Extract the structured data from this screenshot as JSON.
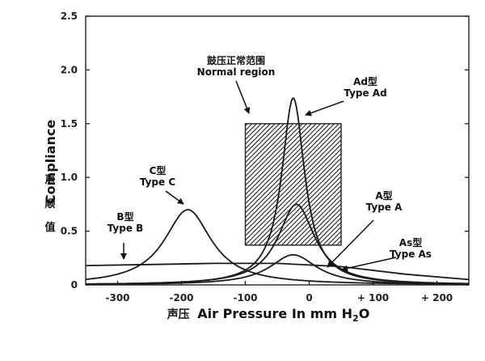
{
  "chart_data": {
    "type": "line",
    "xlabel_prefix": "声压",
    "xlabel": "Air Pressure In mm H",
    "xlabel_sub": "2",
    "xlabel_end": "O",
    "ylabel": "Compliance",
    "ylabel_cn": [
      "声",
      "顺",
      "值"
    ],
    "xlim": [
      -350,
      250
    ],
    "ylim": [
      0,
      2.5
    ],
    "x_ticks": [
      -300,
      -200,
      -100,
      0,
      100,
      200
    ],
    "x_tick_labels": [
      "-300",
      "-200",
      "-100",
      "0",
      "+ 100",
      "+ 200"
    ],
    "y_ticks": [
      0,
      0.5,
      1.0,
      1.5,
      2.0,
      2.5
    ],
    "y_tick_labels": [
      "0",
      "0.5",
      "1.0",
      "1.5",
      "2.0",
      "2.5"
    ],
    "normal_region": {
      "x": [
        -100,
        50
      ],
      "y": [
        0.37,
        1.5
      ],
      "label_cn": "鼓压正常范围",
      "label": "Normal region"
    },
    "series": [
      {
        "name": "Type A",
        "label_cn": "A型",
        "label": "Type A",
        "peak_x": -20,
        "peak_y": 0.75,
        "base": 0.0,
        "width": 35
      },
      {
        "name": "Type Ad",
        "label_cn": "Ad型",
        "label": "Type Ad",
        "peak_x": -25,
        "peak_y": 1.74,
        "base": 0.0,
        "width": 22
      },
      {
        "name": "Type As",
        "label_cn": "As型",
        "label": "Type As",
        "peak_x": -25,
        "peak_y": 0.28,
        "base": 0.0,
        "width": 45
      },
      {
        "name": "Type B",
        "label_cn": "B型",
        "label": "Type B",
        "type": "flat",
        "points": [
          [
            -350,
            0.18
          ],
          [
            -250,
            0.19
          ],
          [
            -150,
            0.2
          ],
          [
            -50,
            0.2
          ],
          [
            50,
            0.17
          ],
          [
            150,
            0.1
          ],
          [
            250,
            0.05
          ]
        ]
      },
      {
        "name": "Type C",
        "label_cn": "C型",
        "label": "Type C",
        "peak_x": -190,
        "peak_y": 0.7,
        "base": 0.0,
        "width": 45
      }
    ]
  }
}
